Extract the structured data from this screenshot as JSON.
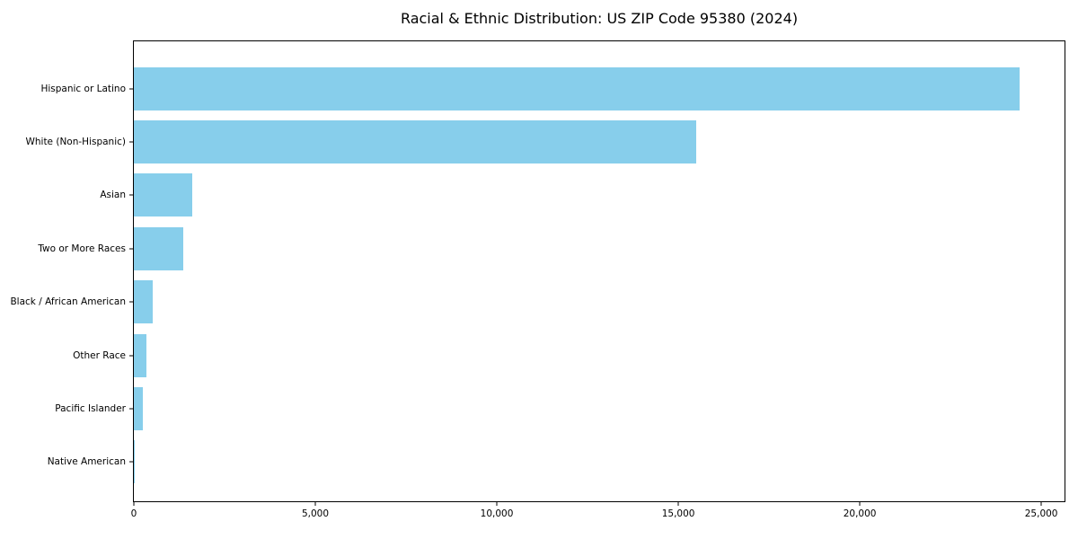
{
  "chart_data": {
    "type": "bar",
    "orientation": "horizontal",
    "title": "Racial & Ethnic Distribution: US ZIP Code 95380 (2024)",
    "categories": [
      "Hispanic or Latino",
      "White (Non-Hispanic)",
      "Asian",
      "Two or More Races",
      "Black / African American",
      "Other Race",
      "Pacific Islander",
      "Native American"
    ],
    "values": [
      24400,
      15500,
      1600,
      1360,
      520,
      350,
      250,
      30
    ],
    "xlabel": "",
    "ylabel": "",
    "xlim": [
      0,
      25640
    ],
    "x_ticks": [
      0,
      5000,
      10000,
      15000,
      20000,
      25000
    ],
    "x_tick_labels": [
      "0",
      "5,000",
      "10,000",
      "15,000",
      "20,000",
      "25,000"
    ],
    "bar_color": "#87CEEB",
    "axis_color": "#000000",
    "background_color": "#ffffff",
    "grid": false,
    "legend": false
  }
}
